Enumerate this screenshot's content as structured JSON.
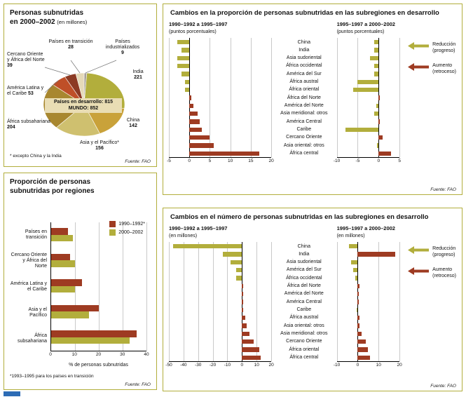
{
  "colors": {
    "olive": "#b2ae3c",
    "brick": "#9e3b22",
    "panel_border": "#b2ae3c",
    "grid": "#c9c9c9",
    "axis": "#000000",
    "accent_blue": "#2d6cb5",
    "center_label_bg": "#e9ddb4"
  },
  "chart_data": [
    {
      "id": "undernourished-pie",
      "type": "pie",
      "title_line1": "Personas subnutridas",
      "title_line2": "en 2000–2002",
      "title_note": "(en millones)",
      "center_label_line1": "Países en desarrollo: 815",
      "center_label_line2": "MUNDO: 852",
      "footnote": "* excepto China y la India",
      "source": "Fuente: FAO",
      "slices": [
        {
          "id": "paises-industrializados",
          "label": "Países industrializados",
          "value": 9,
          "color": "#a8a096"
        },
        {
          "id": "india",
          "label": "India",
          "value": 221,
          "color": "#b2ae3c"
        },
        {
          "id": "china",
          "label": "China",
          "value": 142,
          "color": "#c9a23a"
        },
        {
          "id": "asia-y-el-pacifico",
          "label": "Asia y el Pacífico*",
          "value": 156,
          "color": "#cfc06f"
        },
        {
          "id": "africa-subsahariana",
          "label": "África subsahariana",
          "value": 204,
          "color": "#a8872f"
        },
        {
          "id": "america-latina-y-el-caribe",
          "label": "América Latina y el Caribe",
          "value": 53,
          "color": "#bf4f28"
        },
        {
          "id": "cercano-oriente-y-africa-del-norte",
          "label": "Cercano Oriente y África del Norte",
          "value": 39,
          "color": "#8c3a24"
        },
        {
          "id": "paises-en-transicion",
          "label": "Países en transición",
          "value": 28,
          "color": "#e5d9b8"
        }
      ]
    },
    {
      "id": "proportion-by-region",
      "type": "bar",
      "title_line1": "Proporción de personas",
      "title_line2": "subnutridas por regiones",
      "categories": [
        "Países en transición",
        "Cercano Oriente y África del Norte",
        "América Latina y el Caribe",
        "Asia y el Pacífico",
        "África subsahariana"
      ],
      "series": [
        {
          "name": "1990–1992*",
          "color": "#9e3b22",
          "values": [
            7,
            8,
            13,
            20,
            36
          ]
        },
        {
          "name": "2000–2002",
          "color": "#b2ae3c",
          "values": [
            9,
            10,
            10,
            16,
            33
          ]
        }
      ],
      "xlabel": "% de personas subnutridas",
      "xlim": [
        0,
        40
      ],
      "xticks": [
        0,
        10,
        20,
        30,
        40
      ],
      "footnote": "*1993–1995 para los países en transición",
      "source": "Fuente: FAO"
    },
    {
      "id": "proportion-changes-subregions",
      "type": "bar",
      "title": "Cambios en la proporción de personas subnutridas en las subregiones en desarrollo",
      "categories": [
        "China",
        "India",
        "Asia sudoriental",
        "África occidental",
        "América del Sur",
        "África austral",
        "África oriental",
        "África del Norte",
        "América del Norte",
        "Asia meridional: otros",
        "América Central",
        "Caribe",
        "Cercano Oriente",
        "Asia oriental: otros",
        "África central"
      ],
      "charts": [
        {
          "subtitle": "1990–1992 a 1995–1997",
          "unit": "(puntos porcentuales)",
          "xlim": [
            -5,
            20
          ],
          "xticks": [
            -5,
            0,
            5,
            10,
            15,
            20
          ],
          "values": [
            -3,
            -2,
            -3,
            -3,
            -2,
            -1,
            -1,
            0.5,
            1,
            2,
            2.5,
            3,
            5,
            6,
            17
          ]
        },
        {
          "subtitle": "1995–1997 a 2000–2002",
          "unit": "(puntos porcentuales)",
          "xlim": [
            -10,
            5
          ],
          "xticks": [
            -10,
            -5,
            0,
            5
          ],
          "values": [
            -1,
            -1,
            -2,
            -1,
            -1,
            -5,
            -6,
            0.3,
            -0.5,
            -1,
            0.3,
            -8,
            1,
            -0.3,
            3
          ]
        }
      ],
      "legend": [
        {
          "label": "Reducción",
          "sublabel": "(progreso)",
          "color": "#b2ae3c"
        },
        {
          "label": "Aumento",
          "sublabel": "(retroceso)",
          "color": "#9e3b22"
        }
      ],
      "source": "Fuente: FAO"
    },
    {
      "id": "number-changes-subregions",
      "type": "bar",
      "title": "Cambios en el número de personas subnutridas en las subregiones en desarrollo",
      "categories": [
        "China",
        "India",
        "Asia sudoriental",
        "América del Sur",
        "África occidental",
        "África del Norte",
        "América del Norte",
        "América Central",
        "Caribe",
        "África austral",
        "Asia oriental: otros",
        "Asia meridional: otros",
        "Cercano Oriente",
        "África oriental",
        "África central"
      ],
      "charts": [
        {
          "subtitle": "1990–1992 a 1995–1997",
          "unit": "(en millones)",
          "xlim": [
            -50,
            20
          ],
          "xticks": [
            -50,
            -40,
            -30,
            -20,
            -10,
            0,
            10,
            20
          ],
          "values": [
            -47,
            -13,
            -8,
            -4,
            -4,
            1,
            1,
            1,
            1,
            2,
            3,
            5,
            8,
            12,
            13
          ]
        },
        {
          "subtitle": "1995–1997 a 2000–2002",
          "unit": "(en millones)",
          "xlim": [
            -10,
            20
          ],
          "xticks": [
            -10,
            0,
            10,
            20
          ],
          "values": [
            -4,
            18,
            -3,
            -2,
            -1,
            1,
            0.5,
            0.5,
            -0.5,
            1,
            1,
            2,
            4,
            5,
            6
          ]
        }
      ],
      "legend": [
        {
          "label": "Reducción",
          "sublabel": "(progreso)",
          "color": "#b2ae3c"
        },
        {
          "label": "Aumento",
          "sublabel": "(retroceso)",
          "color": "#9e3b22"
        }
      ],
      "source": "Fuente: FAO"
    }
  ]
}
